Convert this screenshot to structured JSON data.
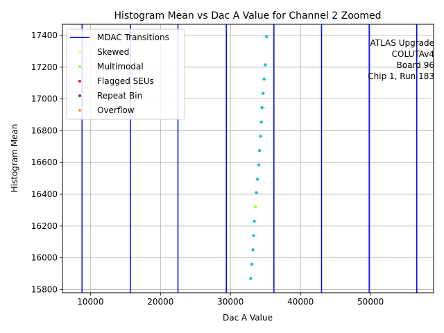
{
  "chart_data": {
    "type": "scatter",
    "title": "Histogram Mean vs Dac A Value for Channel 2 Zoomed",
    "xlabel": "Dac A Value",
    "ylabel": "Histogram Mean",
    "xlim": [
      6000,
      59000
    ],
    "ylim": [
      15780,
      17470
    ],
    "xticks": [
      10000,
      20000,
      30000,
      40000,
      50000
    ],
    "yticks": [
      15800,
      16000,
      16200,
      16400,
      16600,
      16800,
      17000,
      17200,
      17400
    ],
    "grid": true,
    "legend_position": "top-left",
    "annotation": [
      "ATLAS Upgrade",
      "COLUTAv4",
      "Board 96",
      "Chip 1, Run 183"
    ],
    "transitions": {
      "name": "MDAC Transitions",
      "color": "#0000ff",
      "x": [
        8800,
        15700,
        22500,
        29400,
        36200,
        43000,
        49800,
        56600
      ]
    },
    "legend": [
      {
        "name": "MDAC Transitions",
        "kind": "line",
        "color": "#0000ff"
      },
      {
        "name": "Skewed",
        "kind": "point",
        "color": "#ffff33"
      },
      {
        "name": "Multimodal",
        "kind": "point",
        "color": "#99ff33"
      },
      {
        "name": "Flagged SEUs",
        "kind": "point",
        "color": "#e41a1c"
      },
      {
        "name": "Repeat Bin",
        "kind": "point",
        "color": "#7b1fa2"
      },
      {
        "name": "Overflow",
        "kind": "point",
        "color": "#ff9933"
      }
    ],
    "points": {
      "color": "#17becf",
      "x": [
        32900,
        33050,
        33200,
        33300,
        33400,
        33700,
        33850,
        34050,
        34150,
        34300,
        34400,
        34500,
        34650,
        34800,
        34950,
        35150
      ],
      "y": [
        15870,
        15960,
        16050,
        16140,
        16230,
        16410,
        16495,
        16585,
        16675,
        16765,
        16855,
        16945,
        17035,
        17125,
        17215,
        17393
      ]
    },
    "highlighted": [
      {
        "name": "Multimodal",
        "color": "#99ff33",
        "x": 33550,
        "y": 16320
      }
    ]
  }
}
